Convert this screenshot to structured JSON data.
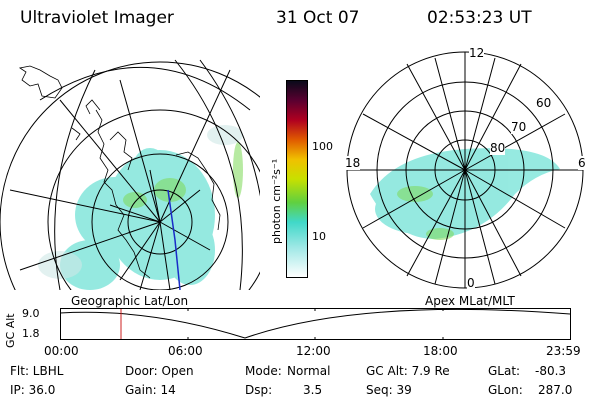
{
  "header": {
    "instrument": "Ultraviolet Imager",
    "date": "31 Oct 07",
    "time": "02:53:23 UT"
  },
  "polar_plot": {
    "mlt_labels": [
      "12",
      "18",
      "6",
      "0"
    ],
    "lat_labels": [
      "60",
      "70",
      "80"
    ]
  },
  "colorbar": {
    "unit_label": "photon cm⁻²s⁻¹",
    "ticks": [
      "100",
      "10"
    ]
  },
  "map_labels": {
    "left": "Geographic Lat/Lon",
    "right": "Apex MLat/MLT"
  },
  "orbit_panel": {
    "axis_label": "GC Alt",
    "y_ticks": [
      "9.0",
      "1.8"
    ],
    "x_ticks": [
      "00:00",
      "06:00",
      "12:00",
      "18:00",
      "23:59"
    ]
  },
  "status": {
    "row1": {
      "flt": "Flt: LBHL",
      "door": "Door: Open",
      "mode_label": "Mode:",
      "mode_value": "Normal",
      "gcalt": "GC Alt: 7.9 Re",
      "glat_label": "GLat:",
      "glat_value": "-80.3"
    },
    "row2": {
      "ip": "IP: 36.0",
      "gain": "Gain: 14",
      "dsp_label": "Dsp:",
      "dsp_value": "3.5",
      "seq": "Seq: 39",
      "glon_label": "GLon:",
      "glon_value": "287.0"
    }
  },
  "colors": {
    "aurora_cyan": "#40d8c8",
    "aurora_green": "#7ed957",
    "time_marker": "#cc2020",
    "land_blue": "#1a2cc8"
  }
}
